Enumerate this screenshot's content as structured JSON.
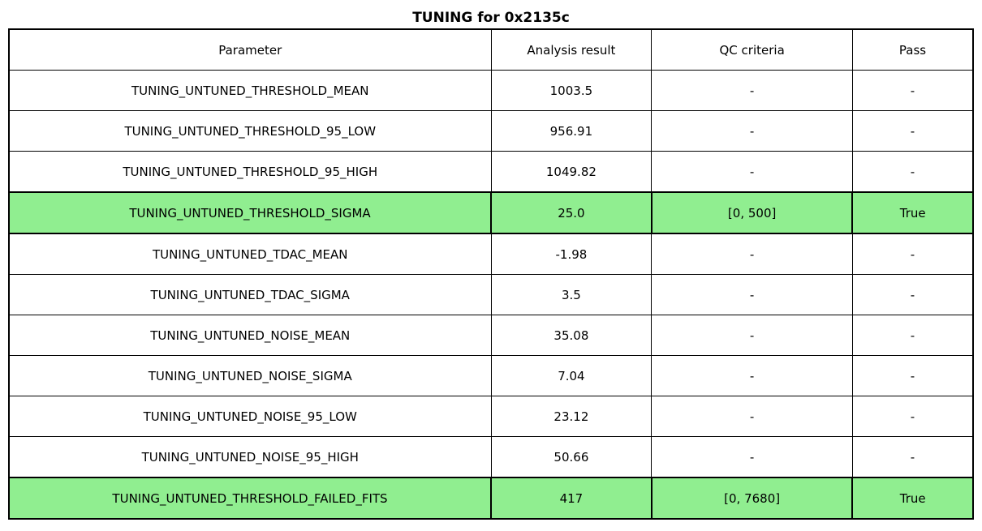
{
  "chart_data": {
    "type": "table",
    "title": "TUNING for 0x2135c",
    "columns": [
      "Parameter",
      "Analysis result",
      "QC criteria",
      "Pass"
    ],
    "rows": [
      {
        "parameter": "TUNING_UNTUNED_THRESHOLD_MEAN",
        "analysis_result": "1003.5",
        "qc_criteria": "-",
        "pass": "-",
        "highlighted": false
      },
      {
        "parameter": "TUNING_UNTUNED_THRESHOLD_95_LOW",
        "analysis_result": "956.91",
        "qc_criteria": "-",
        "pass": "-",
        "highlighted": false
      },
      {
        "parameter": "TUNING_UNTUNED_THRESHOLD_95_HIGH",
        "analysis_result": "1049.82",
        "qc_criteria": "-",
        "pass": "-",
        "highlighted": false
      },
      {
        "parameter": "TUNING_UNTUNED_THRESHOLD_SIGMA",
        "analysis_result": "25.0",
        "qc_criteria": "[0, 500]",
        "pass": "True",
        "highlighted": true
      },
      {
        "parameter": "TUNING_UNTUNED_TDAC_MEAN",
        "analysis_result": "-1.98",
        "qc_criteria": "-",
        "pass": "-",
        "highlighted": false
      },
      {
        "parameter": "TUNING_UNTUNED_TDAC_SIGMA",
        "analysis_result": "3.5",
        "qc_criteria": "-",
        "pass": "-",
        "highlighted": false
      },
      {
        "parameter": "TUNING_UNTUNED_NOISE_MEAN",
        "analysis_result": "35.08",
        "qc_criteria": "-",
        "pass": "-",
        "highlighted": false
      },
      {
        "parameter": "TUNING_UNTUNED_NOISE_SIGMA",
        "analysis_result": "7.04",
        "qc_criteria": "-",
        "pass": "-",
        "highlighted": false
      },
      {
        "parameter": "TUNING_UNTUNED_NOISE_95_LOW",
        "analysis_result": "23.12",
        "qc_criteria": "-",
        "pass": "-",
        "highlighted": false
      },
      {
        "parameter": "TUNING_UNTUNED_NOISE_95_HIGH",
        "analysis_result": "50.66",
        "qc_criteria": "-",
        "pass": "-",
        "highlighted": false
      },
      {
        "parameter": "TUNING_UNTUNED_THRESHOLD_FAILED_FITS",
        "analysis_result": "417",
        "qc_criteria": "[0, 7680]",
        "pass": "True",
        "highlighted": true
      }
    ],
    "layout": {
      "legend": "none",
      "grid": "full-cell-borders",
      "column_width_percents": [
        50,
        16.65,
        20.85,
        12.5
      ]
    }
  },
  "colors": {
    "highlight_green": "#90EE90",
    "border": "#000000",
    "background": "#FFFFFF",
    "text": "#000000"
  }
}
